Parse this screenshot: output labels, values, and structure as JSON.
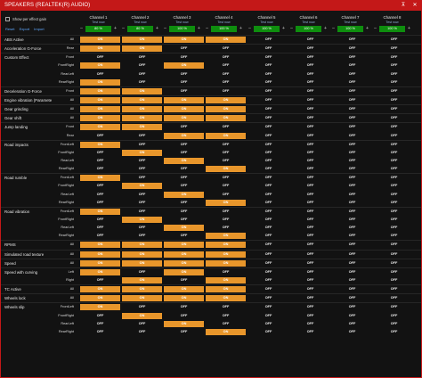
{
  "window": {
    "title": "SPEAKERS (REALTEK(R) AUDIO)",
    "pin": "⊼",
    "close": "✕"
  },
  "options": {
    "gain_label": "Show per effect gain",
    "reset": "Reset",
    "export": "Export",
    "import": "Import"
  },
  "channels": [
    {
      "name": "Channel 1",
      "test": "Test now",
      "volume": "80 %"
    },
    {
      "name": "Channel 2",
      "test": "Test now",
      "volume": "80 %"
    },
    {
      "name": "Channel 3",
      "test": "Test now",
      "volume": "100 %"
    },
    {
      "name": "Channel 4",
      "test": "Test now",
      "volume": "100 %"
    },
    {
      "name": "Channel 5",
      "test": "Test now",
      "volume": "100 %"
    },
    {
      "name": "Channel 6",
      "test": "Test now",
      "volume": "100 %"
    },
    {
      "name": "Channel 7",
      "test": "Test now",
      "volume": "100 %"
    },
    {
      "name": "Channel 8",
      "test": "Test now",
      "volume": "100 %"
    }
  ],
  "labels": {
    "on": "ON",
    "off": "OFF",
    "minus": "–",
    "plus": "+"
  },
  "rows": [
    {
      "effect": "ABS Active",
      "sub": "All",
      "states": [
        1,
        1,
        1,
        1,
        0,
        0,
        0,
        0
      ],
      "gs": true
    },
    {
      "effect": "Acceleration G-Force",
      "sub": "Rear",
      "states": [
        1,
        1,
        0,
        0,
        0,
        0,
        0,
        0
      ],
      "gs": true
    },
    {
      "effect": "Custom Effect",
      "sub": "Front",
      "states": [
        0,
        0,
        0,
        0,
        0,
        0,
        0,
        0
      ],
      "gs": true
    },
    {
      "effect": "",
      "sub": "FrontRight",
      "states": [
        1,
        0,
        1,
        0,
        0,
        0,
        0,
        0
      ]
    },
    {
      "effect": "",
      "sub": "RearLeft",
      "states": [
        0,
        0,
        0,
        0,
        0,
        0,
        0,
        0
      ]
    },
    {
      "effect": "",
      "sub": "RearRight",
      "states": [
        1,
        0,
        0,
        0,
        0,
        0,
        0,
        0
      ]
    },
    {
      "effect": "Deceleration G-Force",
      "sub": "Front",
      "states": [
        1,
        1,
        0,
        0,
        0,
        0,
        0,
        0
      ],
      "gs": true
    },
    {
      "effect": "Engine vibration (Paramete",
      "sub": "All",
      "states": [
        1,
        1,
        1,
        1,
        0,
        0,
        0,
        0
      ],
      "gs": true
    },
    {
      "effect": "Gear grinding",
      "sub": "All",
      "states": [
        1,
        1,
        1,
        1,
        0,
        0,
        0,
        0
      ],
      "gs": true
    },
    {
      "effect": "Gear shift",
      "sub": "All",
      "states": [
        1,
        1,
        1,
        1,
        0,
        0,
        0,
        0
      ],
      "gs": true
    },
    {
      "effect": "Jump landing",
      "sub": "Front",
      "states": [
        1,
        1,
        0,
        0,
        0,
        0,
        0,
        0
      ],
      "gs": true
    },
    {
      "effect": "",
      "sub": "Rear",
      "states": [
        0,
        0,
        1,
        1,
        0,
        0,
        0,
        0
      ]
    },
    {
      "effect": "Road impacts",
      "sub": "FrontLeft",
      "states": [
        1,
        0,
        0,
        0,
        0,
        0,
        0,
        0
      ],
      "gs": true
    },
    {
      "effect": "",
      "sub": "FrontRight",
      "states": [
        0,
        1,
        0,
        0,
        0,
        0,
        0,
        0
      ]
    },
    {
      "effect": "",
      "sub": "RearLeft",
      "states": [
        0,
        0,
        1,
        0,
        0,
        0,
        0,
        0
      ]
    },
    {
      "effect": "",
      "sub": "RearRight",
      "states": [
        0,
        0,
        0,
        1,
        0,
        0,
        0,
        0
      ]
    },
    {
      "effect": "Road rumble",
      "sub": "FrontLeft",
      "states": [
        1,
        0,
        0,
        0,
        0,
        0,
        0,
        0
      ],
      "gs": true
    },
    {
      "effect": "",
      "sub": "FrontRight",
      "states": [
        0,
        1,
        0,
        0,
        0,
        0,
        0,
        0
      ]
    },
    {
      "effect": "",
      "sub": "RearLeft",
      "states": [
        0,
        0,
        1,
        0,
        0,
        0,
        0,
        0
      ]
    },
    {
      "effect": "",
      "sub": "RearRight",
      "states": [
        0,
        0,
        0,
        1,
        0,
        0,
        0,
        0
      ]
    },
    {
      "effect": "Road vibration",
      "sub": "FrontLeft",
      "states": [
        1,
        0,
        0,
        0,
        0,
        0,
        0,
        0
      ],
      "gs": true
    },
    {
      "effect": "",
      "sub": "FrontRight",
      "states": [
        0,
        1,
        0,
        0,
        0,
        0,
        0,
        0
      ]
    },
    {
      "effect": "",
      "sub": "RearLeft",
      "states": [
        0,
        0,
        1,
        0,
        0,
        0,
        0,
        0
      ]
    },
    {
      "effect": "",
      "sub": "RearRight",
      "states": [
        0,
        0,
        0,
        1,
        0,
        0,
        0,
        0
      ]
    },
    {
      "effect": "RPMS",
      "sub": "All",
      "states": [
        1,
        1,
        1,
        1,
        0,
        0,
        0,
        0
      ],
      "gs": true
    },
    {
      "effect": "Simulated road texture",
      "sub": "All",
      "states": [
        1,
        1,
        1,
        1,
        0,
        0,
        0,
        0
      ],
      "gs": true
    },
    {
      "effect": "Speed",
      "sub": "All",
      "states": [
        1,
        1,
        1,
        1,
        0,
        0,
        0,
        0
      ],
      "gs": true
    },
    {
      "effect": "Speed with curving",
      "sub": "Left",
      "states": [
        1,
        0,
        1,
        0,
        0,
        0,
        0,
        0
      ],
      "gs": true
    },
    {
      "effect": "",
      "sub": "Right",
      "states": [
        0,
        1,
        0,
        1,
        0,
        0,
        0,
        0
      ]
    },
    {
      "effect": "TC Active",
      "sub": "All",
      "states": [
        1,
        1,
        1,
        1,
        0,
        0,
        0,
        0
      ],
      "gs": true
    },
    {
      "effect": "Wheels lock",
      "sub": "All",
      "states": [
        1,
        1,
        1,
        1,
        0,
        0,
        0,
        0
      ],
      "gs": true
    },
    {
      "effect": "Wheels slip",
      "sub": "FrontLeft",
      "states": [
        1,
        0,
        0,
        0,
        0,
        0,
        0,
        0
      ],
      "gs": true
    },
    {
      "effect": "",
      "sub": "FrontRight",
      "states": [
        0,
        1,
        0,
        0,
        0,
        0,
        0,
        0
      ]
    },
    {
      "effect": "",
      "sub": "RearLeft",
      "states": [
        0,
        0,
        1,
        0,
        0,
        0,
        0,
        0
      ]
    },
    {
      "effect": "",
      "sub": "RearRight",
      "states": [
        0,
        0,
        0,
        1,
        0,
        0,
        0,
        0
      ]
    }
  ]
}
